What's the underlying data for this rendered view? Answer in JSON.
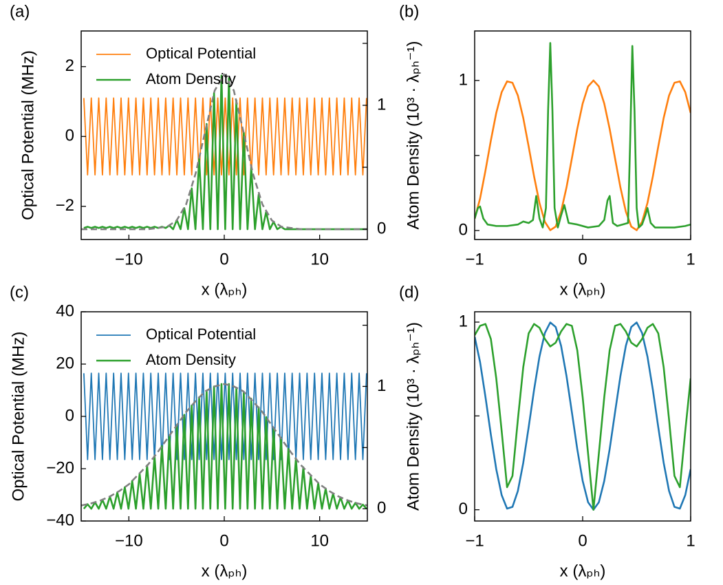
{
  "chart_data": [
    {
      "type": "line",
      "panel_label": "(a)",
      "xlabel": "x (λₚₕ)",
      "ylabel": "Optical Potential (MHz)",
      "y2label": "Atom Density (10³ · λₚₕ⁻¹)",
      "xlim": [
        -15,
        15
      ],
      "xticks": [
        {
          "value": -10,
          "label": "−10"
        },
        0,
        10
      ],
      "ylim": [
        -2.95,
        3.02
      ],
      "yticks": [
        {
          "value": -2,
          "label": "−2"
        },
        0,
        2
      ],
      "y2lim": [
        -0.083,
        1.6
      ],
      "y2ticks": [
        0,
        1
      ],
      "y2ticks_minor": [
        0.5,
        1.5
      ],
      "legend": "upper left",
      "x": [
        -14.72,
        -14.33,
        -13.94,
        -13.55,
        -13.16,
        -12.77,
        -12.38,
        -11.99,
        -11.6,
        -11.21,
        -10.82,
        -10.43,
        -10.04,
        -9.65,
        -9.26,
        -8.87,
        -8.48,
        -8.09,
        -7.7,
        -7.31,
        -6.92,
        -6.53,
        -6.14,
        -5.75,
        -5.36,
        -4.97,
        -4.58,
        -4.19,
        -3.8,
        -3.41,
        -3.02,
        -2.63,
        -2.24,
        -1.85,
        -1.46,
        -1.07,
        -0.68,
        -0.29,
        0.1,
        0.49,
        0.88,
        1.27,
        1.66,
        2.05,
        2.44,
        2.83,
        3.22,
        3.61,
        4.0,
        4.39,
        4.78,
        5.17,
        5.56,
        5.95,
        6.34,
        6.73,
        7.12,
        7.51,
        7.9,
        8.29,
        8.68,
        9.07,
        9.46,
        9.85,
        10.24,
        10.63,
        11.02,
        11.41,
        11.8,
        12.19,
        12.58,
        12.97,
        13.36,
        13.75,
        14.14,
        14.53,
        14.92
      ],
      "series": [
        {
          "name": "Optical Potential",
          "color": "#ff7f0e",
          "values": [
            1.1,
            -1.1,
            1.1,
            -1.1,
            1.1,
            -1.1,
            1.1,
            -1.1,
            1.1,
            -1.1,
            1.1,
            -1.1,
            1.1,
            -1.1,
            1.1,
            -1.1,
            1.1,
            -1.1,
            1.1,
            -1.1,
            1.1,
            -1.1,
            1.1,
            -1.1,
            1.1,
            -1.1,
            1.1,
            -1.1,
            1.1,
            -1.1,
            1.1,
            -1.1,
            1.1,
            -1.1,
            1.1,
            -1.1,
            1.1,
            -1.1,
            1.1,
            -1.1,
            1.1,
            -1.1,
            1.1,
            -1.1,
            1.1,
            -1.1,
            1.1,
            -1.1,
            1.1,
            -1.1,
            1.1,
            -1.1,
            1.1,
            -1.1,
            1.1,
            -1.1,
            1.1,
            -1.1,
            1.1,
            -1.1,
            1.1,
            -1.1,
            1.1,
            -1.1,
            1.1,
            -1.1,
            1.1,
            -1.1,
            1.1,
            -1.1,
            1.1,
            -1.1,
            1.1,
            -1.1,
            1.1,
            -1.1,
            1.1
          ]
        },
        {
          "name": "Atom Density",
          "color": "#2ca02c",
          "axis": "y2",
          "values": [
            0.01,
            0.02,
            0.01,
            0.02,
            0.01,
            0.02,
            0.01,
            0.02,
            0.01,
            0.02,
            0.01,
            0.02,
            0.01,
            0.02,
            0.01,
            0.02,
            0.01,
            0.02,
            0.01,
            0.02,
            0.01,
            0.02,
            0.01,
            0.03,
            0,
            0.075,
            0,
            0.17,
            0,
            0.33,
            0,
            0.57,
            0,
            0.85,
            0,
            1.1,
            0,
            1.24,
            0,
            1.22,
            0,
            1.04,
            0,
            0.78,
            0,
            0.5,
            0,
            0.28,
            0,
            0.14,
            0,
            0.06,
            0,
            0.02,
            0,
            0,
            0,
            0,
            0,
            0,
            0,
            0,
            0,
            0,
            0,
            0,
            0,
            0,
            0,
            0,
            0,
            0,
            0,
            0,
            0,
            0,
            0
          ]
        },
        {
          "color": "#808080",
          "dashed": true,
          "axis": "y2",
          "x": [
            -15,
            -14,
            -13,
            -12,
            -11,
            -10,
            -9,
            -8,
            -7,
            -6,
            -5,
            -4,
            -3,
            -2,
            -1,
            0,
            1,
            2,
            3,
            4,
            5,
            6,
            7,
            8,
            9,
            10,
            11,
            12,
            13,
            14,
            15
          ],
          "values": [
            0,
            0,
            0,
            0,
            0,
            0,
            0,
            0,
            0.01,
            0.02,
            0.07,
            0.2,
            0.45,
            0.79,
            1.12,
            1.25,
            1.12,
            0.79,
            0.45,
            0.2,
            0.07,
            0.02,
            0.01,
            0,
            0,
            0,
            0,
            0,
            0,
            0,
            0
          ]
        }
      ]
    },
    {
      "type": "line",
      "panel_label": "(b)",
      "xlabel": "x (λₚₕ)",
      "xlim": [
        -1,
        1
      ],
      "xticks": [
        {
          "value": -1,
          "label": "−1"
        },
        0,
        1
      ],
      "ylim": [
        -0.06,
        1.33
      ],
      "yticks": [
        0,
        1
      ],
      "yticks_minor": [
        0.5
      ],
      "x": [
        -1,
        -0.95,
        -0.9,
        -0.85,
        -0.8,
        -0.75,
        -0.7,
        -0.65,
        -0.6,
        -0.55,
        -0.5,
        -0.45,
        -0.4,
        -0.35,
        -0.3,
        -0.25,
        -0.2,
        -0.15,
        -0.1,
        -0.05,
        0,
        0.05,
        0.1,
        0.15,
        0.2,
        0.25,
        0.3,
        0.35,
        0.4,
        0.45,
        0.5,
        0.55,
        0.6,
        0.65,
        0.7,
        0.75,
        0.8,
        0.85,
        0.9,
        0.95,
        1
      ],
      "series": [
        {
          "color": "#ff7f0e",
          "values": [
            0.078,
            0.213,
            0.399,
            0.6,
            0.784,
            0.922,
            0.994,
            0.985,
            0.9,
            0.75,
            0.56,
            0.361,
            0.184,
            0.058,
            0.002,
            0.026,
            0.126,
            0.286,
            0.48,
            0.677,
            0.846,
            0.96,
            1.0,
            0.96,
            0.846,
            0.677,
            0.48,
            0.286,
            0.126,
            0.026,
            0.002,
            0.058,
            0.184,
            0.361,
            0.56,
            0.75,
            0.9,
            0.985,
            0.994,
            0.922,
            0.784
          ]
        },
        {
          "color": "#2ca02c",
          "x": [
            -1,
            -0.97,
            -0.95,
            -0.92,
            -0.88,
            -0.8,
            -0.7,
            -0.6,
            -0.55,
            -0.5,
            -0.46,
            -0.43,
            -0.4,
            -0.37,
            -0.34,
            -0.32,
            -0.3,
            -0.28,
            -0.26,
            -0.23,
            -0.2,
            -0.17,
            -0.13,
            -0.05,
            0.05,
            0.15,
            0.2,
            0.23,
            0.25,
            0.28,
            0.32,
            0.42,
            0.44,
            0.46,
            0.48,
            0.5,
            0.52,
            0.55,
            0.58,
            0.6,
            0.63,
            0.67,
            0.75,
            0.85,
            0.95,
            1
          ],
          "values": [
            0.08,
            0.15,
            0.16,
            0.08,
            0.04,
            0.03,
            0.03,
            0.04,
            0.06,
            0.05,
            0.07,
            0.23,
            0.08,
            0.02,
            0.15,
            0.8,
            1.25,
            0.8,
            0.15,
            0.02,
            0.1,
            0.17,
            0.05,
            0.04,
            0.02,
            0.03,
            0.07,
            0.2,
            0.23,
            0.05,
            0.03,
            0.05,
            0.6,
            1.23,
            0.8,
            0.15,
            0.02,
            0.04,
            0.1,
            0.15,
            0.05,
            0.02,
            0.02,
            0.02,
            0.03,
            0.04
          ]
        }
      ]
    },
    {
      "type": "line",
      "panel_label": "(c)",
      "xlabel": "x (λₚₕ)",
      "ylabel": "Optical Potential (MHz)",
      "y2label": "Atom Density (10³ · λₚₕ⁻¹)",
      "xlim": [
        -15,
        15
      ],
      "xticks": [
        {
          "value": -10,
          "label": "−10"
        },
        0,
        10
      ],
      "ylim": [
        -40,
        40
      ],
      "yticks": [
        {
          "value": -40,
          "label": "−40"
        },
        {
          "value": -20,
          "label": "−20"
        },
        0,
        20,
        40
      ],
      "y2lim": [
        -0.1,
        1.61
      ],
      "y2ticks": [
        0,
        1
      ],
      "y2ticks_minor": [
        0.5,
        1.5
      ],
      "legend": "upper left",
      "x": [
        -14.72,
        -14.33,
        -13.94,
        -13.55,
        -13.16,
        -12.77,
        -12.38,
        -11.99,
        -11.6,
        -11.21,
        -10.82,
        -10.43,
        -10.04,
        -9.65,
        -9.26,
        -8.87,
        -8.48,
        -8.09,
        -7.7,
        -7.31,
        -6.92,
        -6.53,
        -6.14,
        -5.75,
        -5.36,
        -4.97,
        -4.58,
        -4.19,
        -3.8,
        -3.41,
        -3.02,
        -2.63,
        -2.24,
        -1.85,
        -1.46,
        -1.07,
        -0.68,
        -0.29,
        0.1,
        0.49,
        0.88,
        1.27,
        1.66,
        2.05,
        2.44,
        2.83,
        3.22,
        3.61,
        4.0,
        4.39,
        4.78,
        5.17,
        5.56,
        5.95,
        6.34,
        6.73,
        7.12,
        7.51,
        7.9,
        8.29,
        8.68,
        9.07,
        9.46,
        9.85,
        10.24,
        10.63,
        11.02,
        11.41,
        11.8,
        12.19,
        12.58,
        12.97,
        13.36,
        13.75,
        14.14,
        14.53,
        14.92
      ],
      "series": [
        {
          "name": "Optical Potential",
          "color": "#1f77b4",
          "values": [
            16.5,
            -16.5,
            16.5,
            -16.5,
            16.5,
            -16.5,
            16.5,
            -16.5,
            16.5,
            -16.5,
            16.5,
            -16.5,
            16.5,
            -16.5,
            16.5,
            -16.5,
            16.5,
            -16.5,
            16.5,
            -16.5,
            16.5,
            -16.5,
            16.5,
            -16.5,
            16.5,
            -16.5,
            16.5,
            -16.5,
            16.5,
            -16.5,
            16.5,
            -16.5,
            16.5,
            -16.5,
            16.5,
            -16.5,
            16.5,
            -16.5,
            16.5,
            -16.5,
            16.5,
            -16.5,
            16.5,
            -16.5,
            16.5,
            -16.5,
            16.5,
            -16.5,
            16.5,
            -16.5,
            16.5,
            -16.5,
            16.5,
            -16.5,
            16.5,
            -16.5,
            16.5,
            -16.5,
            16.5,
            -16.5,
            16.5,
            -16.5,
            16.5,
            -16.5,
            16.5,
            -16.5,
            16.5,
            -16.5,
            16.5,
            -16.5,
            16.5,
            -16.5,
            16.5,
            -16.5,
            16.5,
            -16.5,
            16.5
          ]
        },
        {
          "name": "Atom Density",
          "color": "#2ca02c",
          "axis": "y2",
          "values": [
            0,
            0.037,
            0,
            0.053,
            0,
            0.073,
            0,
            0.1,
            0,
            0.134,
            0,
            0.176,
            0,
            0.228,
            0,
            0.287,
            0,
            0.355,
            0,
            0.431,
            0,
            0.513,
            0,
            0.599,
            0,
            0.685,
            0,
            0.768,
            0,
            0.845,
            0,
            0.912,
            0,
            0.965,
            0,
            1.0,
            0,
            1.02,
            0,
            1.02,
            0,
            0.99,
            0,
            0.95,
            0,
            0.9,
            0,
            0.83,
            0,
            0.75,
            0,
            0.66,
            0,
            0.58,
            0,
            0.49,
            0,
            0.41,
            0,
            0.34,
            0,
            0.27,
            0,
            0.21,
            0,
            0.165,
            0,
            0.125,
            0,
            0.093,
            0,
            0.068,
            0,
            0.048,
            0,
            0.034,
            0
          ]
        },
        {
          "color": "#808080",
          "dashed": true,
          "axis": "y2",
          "x": [
            -15,
            -14,
            -13,
            -12,
            -11,
            -10,
            -9,
            -8,
            -7,
            -6,
            -5,
            -4,
            -3,
            -2,
            -1,
            0,
            1,
            2,
            3,
            4,
            5,
            6,
            7,
            8,
            9,
            10,
            11,
            12,
            13,
            14,
            15
          ],
          "values": [
            0.027,
            0.043,
            0.067,
            0.1,
            0.145,
            0.2,
            0.28,
            0.36,
            0.46,
            0.57,
            0.68,
            0.79,
            0.88,
            0.96,
            1.0,
            1.02,
            1.0,
            0.96,
            0.88,
            0.79,
            0.68,
            0.57,
            0.46,
            0.36,
            0.28,
            0.2,
            0.145,
            0.1,
            0.067,
            0.043,
            0.027
          ]
        }
      ]
    },
    {
      "type": "line",
      "panel_label": "(d)",
      "xlabel": "x (λₚₕ)",
      "xlim": [
        -1,
        1
      ],
      "xticks": [
        {
          "value": -1,
          "label": "−1"
        },
        0,
        1
      ],
      "ylim": [
        -0.06,
        1.055
      ],
      "yticks": [
        0,
        1
      ],
      "yticks_minor": [
        0.5
      ],
      "x": [
        -1,
        -0.95,
        -0.9,
        -0.85,
        -0.8,
        -0.75,
        -0.7,
        -0.65,
        -0.6,
        -0.55,
        -0.5,
        -0.45,
        -0.4,
        -0.35,
        -0.3,
        -0.25,
        -0.2,
        -0.15,
        -0.1,
        -0.05,
        0,
        0.05,
        0.1,
        0.15,
        0.2,
        0.25,
        0.3,
        0.35,
        0.4,
        0.45,
        0.5,
        0.55,
        0.6,
        0.65,
        0.7,
        0.75,
        0.8,
        0.85,
        0.9,
        0.95,
        1
      ],
      "series": [
        {
          "color": "#1f77b4",
          "values": [
            0.922,
            0.787,
            0.601,
            0.4,
            0.216,
            0.078,
            0.006,
            0.015,
            0.1,
            0.25,
            0.44,
            0.639,
            0.816,
            0.942,
            0.998,
            0.974,
            0.874,
            0.714,
            0.52,
            0.323,
            0.154,
            0.04,
            0,
            0.04,
            0.154,
            0.323,
            0.52,
            0.714,
            0.874,
            0.974,
            0.998,
            0.942,
            0.816,
            0.639,
            0.44,
            0.25,
            0.1,
            0.015,
            0.006,
            0.078,
            0.216
          ]
        },
        {
          "color": "#2ca02c",
          "values": [
            0.93,
            0.98,
            0.99,
            0.91,
            0.7,
            0.42,
            0.12,
            0.18,
            0.48,
            0.76,
            0.94,
            0.99,
            0.97,
            0.91,
            0.87,
            0.89,
            0.95,
            0.99,
            0.98,
            0.85,
            0.6,
            0.3,
            0.0,
            0.3,
            0.6,
            0.85,
            0.98,
            0.99,
            0.95,
            0.89,
            0.87,
            0.91,
            0.97,
            0.99,
            0.94,
            0.76,
            0.48,
            0.18,
            0.12,
            0.42,
            0.7
          ]
        }
      ]
    }
  ]
}
